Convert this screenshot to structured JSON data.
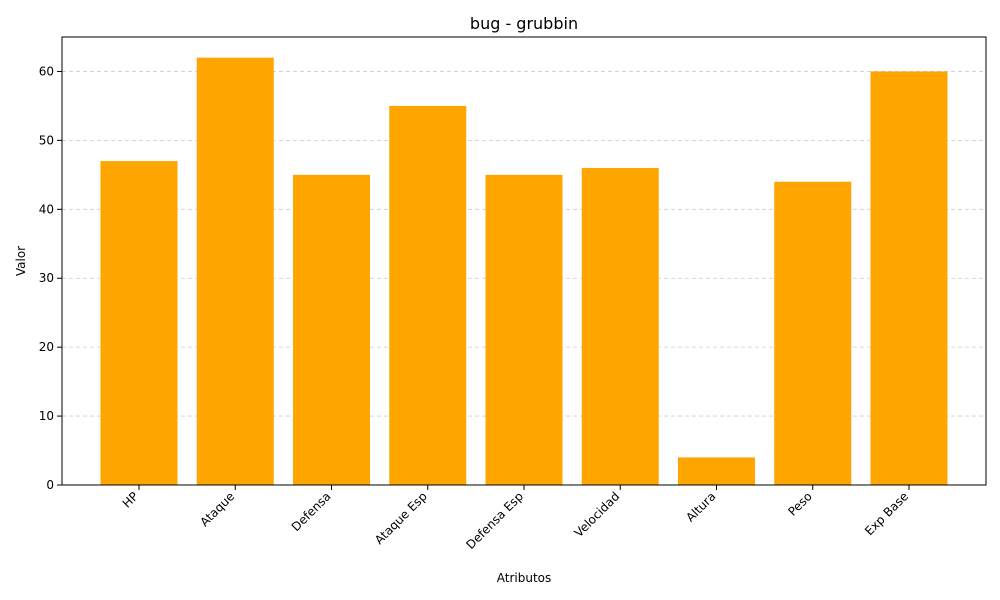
{
  "chart_data": {
    "type": "bar",
    "title": "bug - grubbin",
    "xlabel": "Atributos",
    "ylabel": "Valor",
    "categories": [
      "HP",
      "Ataque",
      "Defensa",
      "Ataque Esp",
      "Defensa Esp",
      "Velocidad",
      "Altura",
      "Peso",
      "Exp Base"
    ],
    "values": [
      47,
      62,
      45,
      55,
      45,
      46,
      4,
      44,
      60
    ],
    "ylim": [
      0,
      65
    ],
    "yticks": [
      0,
      10,
      20,
      30,
      40,
      50,
      60
    ],
    "grid": "y-dashed",
    "bar_color": "#FFA500",
    "grid_color": "#cccccc"
  }
}
